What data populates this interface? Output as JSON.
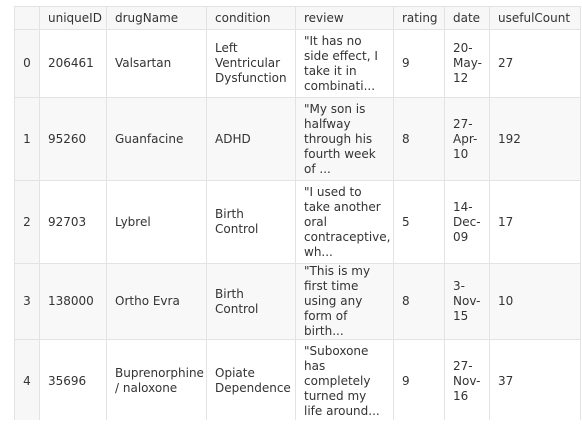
{
  "table": {
    "columns": [
      "",
      "uniqueID",
      "drugName",
      "condition",
      "review",
      "rating",
      "date",
      "usefulCount"
    ],
    "rows": [
      {
        "index": "0",
        "uniqueID": "206461",
        "drugName": "Valsartan",
        "condition": "Left Ventricular Dysfunction",
        "review": "\"It has no side effect, I take it in combinati...",
        "rating": "9",
        "date": "20-May-12",
        "usefulCount": "27"
      },
      {
        "index": "1",
        "uniqueID": "95260",
        "drugName": "Guanfacine",
        "condition": "ADHD",
        "review": "\"My son is halfway through his fourth week of ...",
        "rating": "8",
        "date": "27-Apr-10",
        "usefulCount": "192"
      },
      {
        "index": "2",
        "uniqueID": "92703",
        "drugName": "Lybrel",
        "condition": "Birth Control",
        "review": "\"I used to take another oral contraceptive, wh...",
        "rating": "5",
        "date": "14-Dec-09",
        "usefulCount": "17"
      },
      {
        "index": "3",
        "uniqueID": "138000",
        "drugName": "Ortho Evra",
        "condition": "Birth Control",
        "review": "\"This is my first time using any form of birth...",
        "rating": "8",
        "date": "3-Nov-15",
        "usefulCount": "10"
      },
      {
        "index": "4",
        "uniqueID": "35696",
        "drugName": "Buprenorphine / naloxone",
        "condition": "Opiate Dependence",
        "review": "\"Suboxone has completely turned my life around...",
        "rating": "9",
        "date": "27-Nov-16",
        "usefulCount": "37"
      }
    ]
  }
}
